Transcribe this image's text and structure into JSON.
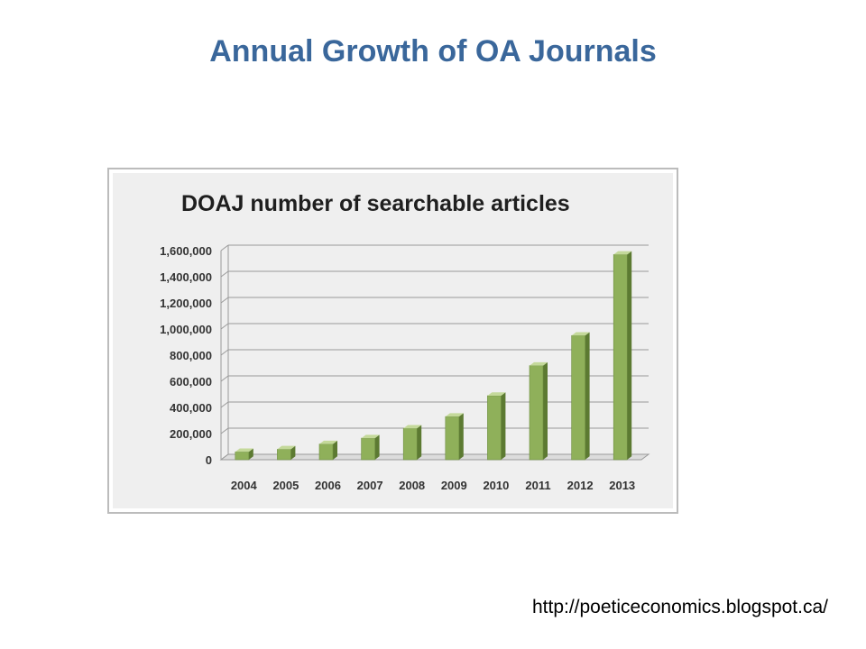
{
  "slide": {
    "title": "Annual Growth of OA Journals",
    "source": "http://poeticeconomics.blogspot.ca/"
  },
  "colors": {
    "title": "#3a679b",
    "bar_front": "#8fb05a",
    "bar_side": "#5c7a32",
    "bar_top": "#c4d99a"
  },
  "chart_data": {
    "type": "bar",
    "title": "DOAJ number of searchable articles",
    "categories": [
      "2004",
      "2005",
      "2006",
      "2007",
      "2008",
      "2009",
      "2010",
      "2011",
      "2012",
      "2013"
    ],
    "values": [
      60000,
      80000,
      120000,
      165000,
      240000,
      330000,
      490000,
      720000,
      950000,
      1570000
    ],
    "yticks": [
      "0",
      "200,000",
      "400,000",
      "600,000",
      "800,000",
      "1,000,000",
      "1,200,000",
      "1,400,000",
      "1,600,000"
    ],
    "ylim": [
      0,
      1600000
    ],
    "grid": true,
    "legend": "none",
    "style": "3d-columns"
  }
}
